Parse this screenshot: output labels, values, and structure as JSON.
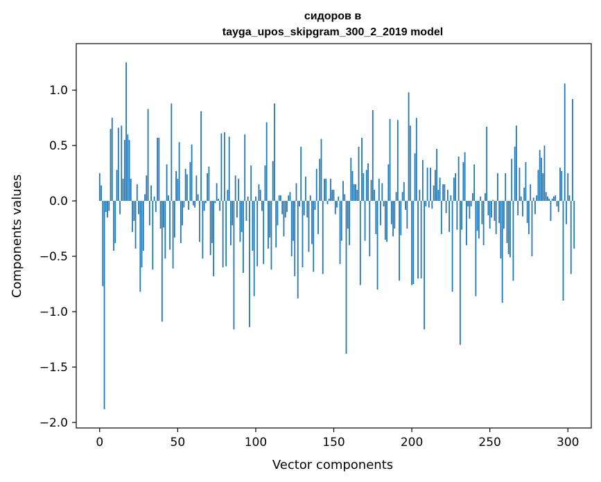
{
  "chart_data": {
    "type": "bar",
    "title_line1": "сидоров в",
    "title_line2": "tayga_upos_skipgram_300_2_2019 model",
    "xlabel": "Vector components",
    "ylabel": "Components values",
    "xlim": [
      -15,
      315
    ],
    "ylim": [
      -2.05,
      1.42
    ],
    "xticks": [
      0,
      50,
      100,
      150,
      200,
      250,
      300
    ],
    "xtick_labels": [
      "0",
      "50",
      "100",
      "150",
      "200",
      "250",
      "300"
    ],
    "yticks": [
      -2.0,
      -1.5,
      -1.0,
      -0.5,
      0.0,
      0.5,
      1.0
    ],
    "ytick_labels": [
      "−2.0",
      "−1.5",
      "−1.0",
      "−0.5",
      "0.0",
      "0.5",
      "1.0"
    ],
    "bar_color": "#1f77b4",
    "values": [
      0.25,
      0.14,
      -0.77,
      -1.88,
      -0.1,
      -0.15,
      -0.09,
      0.65,
      0.75,
      -0.45,
      -0.38,
      0.28,
      0.66,
      -0.12,
      0.68,
      0.2,
      0.55,
      1.25,
      0.6,
      0.55,
      0.2,
      -0.28,
      -0.18,
      -0.43,
      0.15,
      -0.12,
      -0.82,
      -0.6,
      -0.45,
      0.06,
      0.23,
      0.83,
      -0.22,
      0.14,
      -0.62,
      0.04,
      -0.1,
      0.57,
      0.57,
      -0.25,
      -1.09,
      -0.24,
      -0.52,
      0.33,
      0.05,
      -0.44,
      0.88,
      -0.61,
      -0.33,
      0.27,
      0.2,
      0.53,
      -0.38,
      -0.22,
      -0.06,
      0.29,
      0.24,
      -0.08,
      0.35,
      0.51,
      -0.04,
      -0.06,
      0.23,
      0.06,
      -0.37,
      0.81,
      -0.52,
      -0.09,
      -0.02,
      0.25,
      0.31,
      -0.49,
      -0.38,
      -0.68,
      -0.02,
      0.16,
      0.02,
      -0.09,
      0.61,
      -0.6,
      0.62,
      -0.59,
      0.1,
      0.58,
      -0.4,
      -0.22,
      -1.16,
      0.23,
      -0.15,
      0.2,
      -0.37,
      -0.28,
      -0.65,
      0.6,
      -0.18,
      0.04,
      -1.14,
      0.32,
      -0.45,
      -0.86,
      0.04,
      -0.59,
      0.15,
      0.1,
      -0.09,
      -0.57,
      0.32,
      0.71,
      -0.43,
      -0.33,
      -0.62,
      0.36,
      0.88,
      -0.42,
      -0.22,
      0.05,
      0.05,
      -0.12,
      -0.32,
      -0.15,
      -0.1,
      0.05,
      0.08,
      -0.5,
      -0.36,
      -0.68,
      0.16,
      -0.88,
      -0.05,
      0.49,
      -0.6,
      -0.13,
      0.22,
      -0.15,
      -0.46,
      0.05,
      -0.39,
      -0.64,
      -0.08,
      0.29,
      -0.3,
      0.38,
      0.56,
      -0.66,
      0.2,
      0.2,
      -0.03,
      0.02,
      0.2,
      0.1,
      0.1,
      -0.12,
      -0.06,
      0.04,
      -0.57,
      -0.36,
      0.18,
      0.06,
      -1.38,
      -0.25,
      -0.4,
      0.39,
      0.27,
      0.15,
      0.15,
      0.1,
      0.49,
      -0.76,
      0.57,
      0.25,
      -0.36,
      0.28,
      0.34,
      -0.5,
      0.19,
      0.82,
      0.1,
      -0.3,
      -0.8,
      0.2,
      -0.22,
      0.16,
      -0.05,
      -0.35,
      -0.37,
      0.33,
      0.74,
      -0.21,
      -0.32,
      -0.25,
      0.08,
      0.73,
      -0.72,
      -0.31,
      0.08,
      0.17,
      -0.08,
      -0.25,
      0.98,
      0.68,
      -0.76,
      -0.75,
      0.43,
      0.75,
      -0.7,
      0.1,
      -0.7,
      0.37,
      -1.16,
      -0.05,
      0.3,
      -0.06,
      0.3,
      -0.07,
      0.14,
      0.28,
      0.47,
      0.1,
      0.21,
      -0.3,
      0.15,
      0.15,
      -0.11,
      0.1,
      -0.28,
      0.05,
      -0.82,
      0.21,
      0.25,
      -0.26,
      0.4,
      -1.3,
      -0.26,
      0.35,
      0.44,
      -0.4,
      -0.05,
      -0.16,
      -0.05,
      0.07,
      0.33,
      -0.86,
      -0.27,
      -0.34,
      0.04,
      -0.21,
      -0.4,
      0.07,
      0.67,
      -0.13,
      -0.25,
      -0.15,
      0.01,
      -0.18,
      -0.3,
      0.25,
      -0.2,
      -0.52,
      -0.92,
      -0.25,
      0.25,
      -0.38,
      -0.48,
      -0.51,
      0.38,
      -0.72,
      0.49,
      0.68,
      -0.13,
      0.3,
      0.04,
      -0.14,
      0.12,
      0.35,
      -0.2,
      -0.3,
      0.15,
      -0.5,
      0.03,
      -0.12,
      0.05,
      0.28,
      0.46,
      0.39,
      0.25,
      0.5,
      0.08,
      0.04,
      0.02,
      -0.18,
      0.02,
      0.04,
      0.05,
      -0.05,
      -0.1,
      0.3,
      0.27,
      -0.9,
      1.06,
      -0.21,
      0.25,
      0.05,
      -0.66,
      0.92,
      -0.43
    ]
  }
}
